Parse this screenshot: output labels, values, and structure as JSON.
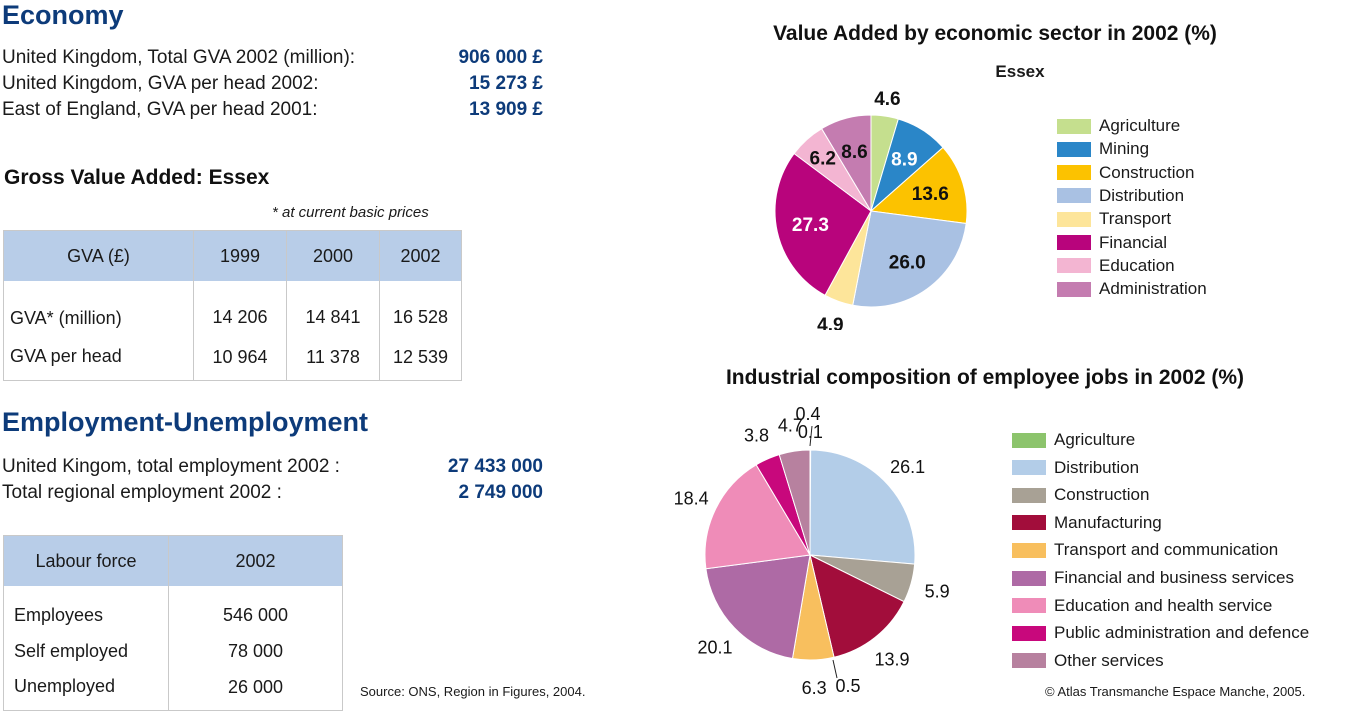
{
  "economy": {
    "title": "Economy",
    "rows": [
      {
        "label": "United Kingdom, Total GVA 2002 (million):",
        "value": "906 000 £"
      },
      {
        "label": "United Kingdom, GVA per head 2002:",
        "value": "15 273 £"
      },
      {
        "label": "East of England, GVA per head 2001:",
        "value": "13 909 £"
      }
    ]
  },
  "gva_table": {
    "title": "Gross Value Added: Essex",
    "note": "* at current basic prices",
    "headers": [
      "GVA (£)",
      "1999",
      "2000",
      "2002"
    ],
    "rows": [
      [
        "GVA* (million)",
        "14 206",
        "14 841",
        "16 528"
      ],
      [
        "GVA per head",
        "10 964",
        "11 378",
        "12 539"
      ]
    ]
  },
  "employment": {
    "title": "Employment-Unemployment",
    "rows": [
      {
        "label": "United Kingom, total employment 2002 :",
        "value": "27 433 000"
      },
      {
        "label": "Total regional employment 2002 :",
        "value": "2 749 000"
      }
    ]
  },
  "labour_table": {
    "headers": [
      "Labour force",
      "2002"
    ],
    "rows": [
      [
        "Employees",
        "546 000"
      ],
      [
        "Self employed",
        "78 000"
      ],
      [
        "Unemployed",
        "26 000"
      ]
    ]
  },
  "footer": {
    "source": "Source: ONS, Region in Figures, 2004.",
    "copyright": "© Atlas Transmanche Espace Manche, 2005."
  },
  "chart_data": [
    {
      "type": "pie",
      "title": "Value Added by economic sector in 2002 (%)",
      "subtitle": "Essex",
      "categories": [
        "Agriculture",
        "Mining",
        "Construction",
        "Distribution",
        "Transport",
        "Financial",
        "Education",
        "Administration"
      ],
      "values": [
        4.6,
        8.9,
        13.6,
        26.0,
        4.9,
        27.3,
        6.2,
        8.6
      ],
      "labels": [
        "4.6",
        "8.9",
        "13.6",
        "26.0",
        "4.9",
        "27.3",
        "6.2",
        "8.6"
      ],
      "colors": [
        "#c5df8e",
        "#2a86c8",
        "#fcc200",
        "#a9c1e3",
        "#fde59a",
        "#b8047c",
        "#f3b5d2",
        "#c47cb0"
      ],
      "legend": "right"
    },
    {
      "type": "pie",
      "title": "Industrial composition of employee jobs in 2002 (%)",
      "categories": [
        "Agriculture",
        "Distribution",
        "Construction",
        "Manufacturing",
        "Transport and communication",
        "Financial and business services",
        "Education and health service",
        "Public administration and defence",
        "Other services"
      ],
      "values": [
        0.1,
        26.1,
        5.9,
        13.9,
        6.3,
        20.1,
        18.4,
        3.8,
        4.7
      ],
      "labels": [
        "0.1",
        "26.1",
        "5.9",
        "13.9",
        "6.3",
        "20.1",
        "18.4",
        "3.8",
        "4.7"
      ],
      "extra_labels": [
        "0.4",
        "0.5"
      ],
      "colors": [
        "#8cc46c",
        "#b3cde8",
        "#a8a195",
        "#a20d3b",
        "#f8bf5e",
        "#ae6aa5",
        "#ef8cb8",
        "#c8087c",
        "#b7819f"
      ],
      "legend": "right"
    }
  ]
}
